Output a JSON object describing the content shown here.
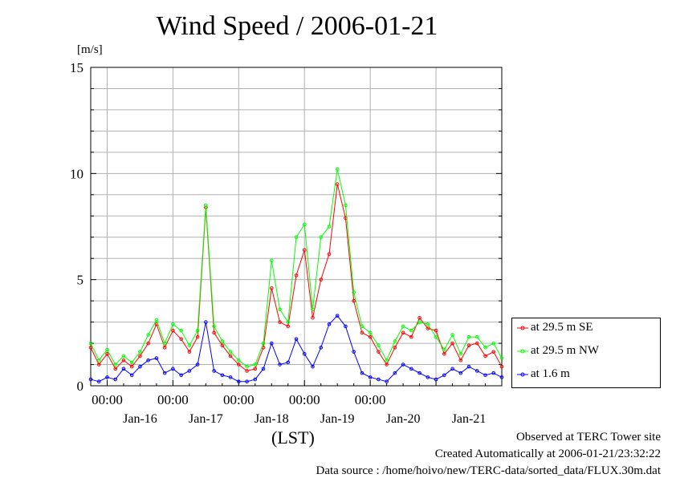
{
  "title": "Wind Speed / 2006-01-21",
  "y_unit": "[m/s]",
  "x_axis_label": "(LST)",
  "footer": {
    "site": "Observed at TERC Tower site",
    "created": "Created Automatically at 2006-01-21/23:32:22",
    "source": "Data source : /home/hoivo/new/TERC-data/sorted_data/FLUX.30m.dat"
  },
  "chart_data": {
    "type": "line",
    "title": "Wind Speed / 2006-01-21",
    "xlabel": "(LST)",
    "ylabel": "[m/s]",
    "ylim": [
      0,
      15
    ],
    "yticks": [
      0,
      5,
      10,
      15
    ],
    "xlim": [
      "2006-01-15 18:00",
      "2006-01-21 24:00"
    ],
    "x_time_ticks": [
      "00:00",
      "00:00",
      "00:00",
      "00:00",
      "00:00"
    ],
    "x_date_ticks": [
      "Jan-16",
      "Jan-17",
      "Jan-18",
      "Jan-19",
      "Jan-20",
      "Jan-21"
    ],
    "grid": true,
    "legend_position": "right",
    "x_hours": [
      0,
      3,
      6,
      9,
      12,
      15,
      18,
      21,
      24,
      27,
      30,
      33,
      36,
      39,
      42,
      45,
      48,
      51,
      54,
      57,
      60,
      63,
      66,
      69,
      72,
      75,
      78,
      81,
      84,
      87,
      90,
      93,
      96,
      99,
      102,
      105,
      108,
      111,
      114,
      117,
      120,
      123,
      126,
      129,
      132,
      135,
      138,
      141,
      144,
      147,
      150
    ],
    "series": [
      {
        "name": "at 29.5 m SE",
        "color": "#ff0000",
        "values": [
          1.8,
          1.0,
          1.5,
          0.8,
          1.2,
          0.9,
          1.4,
          2.0,
          2.9,
          1.8,
          2.6,
          2.2,
          1.6,
          2.3,
          8.4,
          2.5,
          1.9,
          1.4,
          1.0,
          0.7,
          0.8,
          1.8,
          4.6,
          3.0,
          2.8,
          5.2,
          6.4,
          3.2,
          5.0,
          6.2,
          9.5,
          7.9,
          4.0,
          2.5,
          2.3,
          1.6,
          1.0,
          1.8,
          2.5,
          2.3,
          3.2,
          2.7,
          2.6,
          1.5,
          2.0,
          1.2,
          1.9,
          2.0,
          1.4,
          1.6,
          0.9
        ]
      },
      {
        "name": "at 29.5 m NW",
        "color": "#00ff00",
        "values": [
          2.0,
          1.2,
          1.7,
          1.0,
          1.4,
          1.1,
          1.6,
          2.4,
          3.1,
          2.0,
          2.9,
          2.6,
          1.9,
          2.6,
          8.5,
          2.8,
          2.1,
          1.6,
          1.2,
          0.9,
          1.0,
          2.0,
          5.9,
          3.6,
          3.0,
          7.0,
          7.6,
          3.6,
          7.0,
          7.5,
          10.2,
          8.5,
          4.4,
          2.8,
          2.5,
          1.9,
          1.2,
          2.1,
          2.8,
          2.6,
          3.0,
          2.9,
          2.3,
          1.7,
          2.4,
          1.5,
          2.3,
          2.3,
          1.8,
          2.0,
          1.3
        ]
      },
      {
        "name": "at 1.6 m",
        "color": "#0000ff",
        "values": [
          0.3,
          0.2,
          0.4,
          0.3,
          0.8,
          0.5,
          0.9,
          1.2,
          1.3,
          0.6,
          0.8,
          0.5,
          0.7,
          1.0,
          3.0,
          0.7,
          0.5,
          0.4,
          0.2,
          0.2,
          0.3,
          0.8,
          2.0,
          1.0,
          1.1,
          2.2,
          1.5,
          0.9,
          1.8,
          2.9,
          3.3,
          2.8,
          1.6,
          0.6,
          0.4,
          0.3,
          0.2,
          0.6,
          1.0,
          0.8,
          0.6,
          0.4,
          0.3,
          0.5,
          0.8,
          0.6,
          0.9,
          0.7,
          0.5,
          0.6,
          0.4
        ]
      }
    ]
  }
}
